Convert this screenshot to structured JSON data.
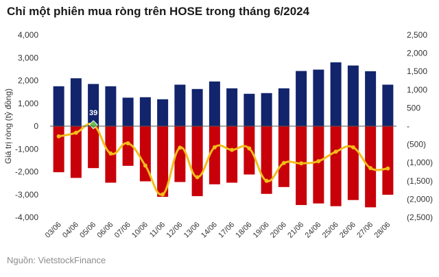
{
  "title": "Chỉ một phiên mua ròng trên HOSE trong tháng 6/2024",
  "source": "Nguồn: VietstockFinance",
  "chart_data": {
    "type": "bar",
    "title": "Chỉ một phiên mua ròng trên HOSE trong tháng 6/2024",
    "ylabel": "Giá trị ròng  (tỷ đồng)",
    "categories": [
      "03/06",
      "04/06",
      "05/06",
      "06/06",
      "07/06",
      "10/06",
      "11/06",
      "12/06",
      "13/06",
      "14/06",
      "17/06",
      "18/06",
      "19/06",
      "20/06",
      "21/06",
      "24/06",
      "25/06",
      "26/06",
      "27/06",
      "28/06"
    ],
    "series": [
      {
        "values": [
          1750,
          2100,
          1850,
          1750,
          1250,
          1270,
          1180,
          1820,
          1630,
          1960,
          1660,
          1420,
          1450,
          1660,
          2420,
          2480,
          2800,
          2660,
          2410,
          1820
        ]
      },
      {
        "values": [
          -2020,
          -2270,
          -1840,
          -2480,
          -1740,
          -2420,
          -3100,
          -2450,
          -3070,
          -2550,
          -2480,
          -2120,
          -2970,
          -2670,
          -3460,
          -3390,
          -3510,
          -3240,
          -3560,
          -3010
        ]
      },
      {
        "values": [
          -280,
          -180,
          39,
          -750,
          -470,
          -1080,
          -1870,
          -590,
          -1400,
          -580,
          -650,
          -610,
          -1500,
          -1010,
          -1020,
          -960,
          -700,
          -580,
          -1150,
          -1160
        ]
      }
    ],
    "ylim": [
      -4000,
      4000
    ],
    "y2lim": [
      -2500,
      2500
    ],
    "yticks": [
      "4,000",
      "3,000",
      "2,000",
      "1,000",
      "0",
      "-1,000",
      "-2,000",
      "-3,000",
      "-4,000"
    ],
    "y2ticks": [
      "2,500",
      "2,000",
      "1,500",
      "1,000",
      "500",
      "-",
      "(500)",
      "(1,000)",
      "(1,500)",
      "(2,000)",
      "(2,500)"
    ],
    "data_label": {
      "index": 2,
      "text": "39"
    },
    "colors": {
      "buy": "#12246b",
      "sell": "#c8000a",
      "net": "#f2be1a",
      "highlight": "#6abf4b"
    },
    "grid": false
  }
}
